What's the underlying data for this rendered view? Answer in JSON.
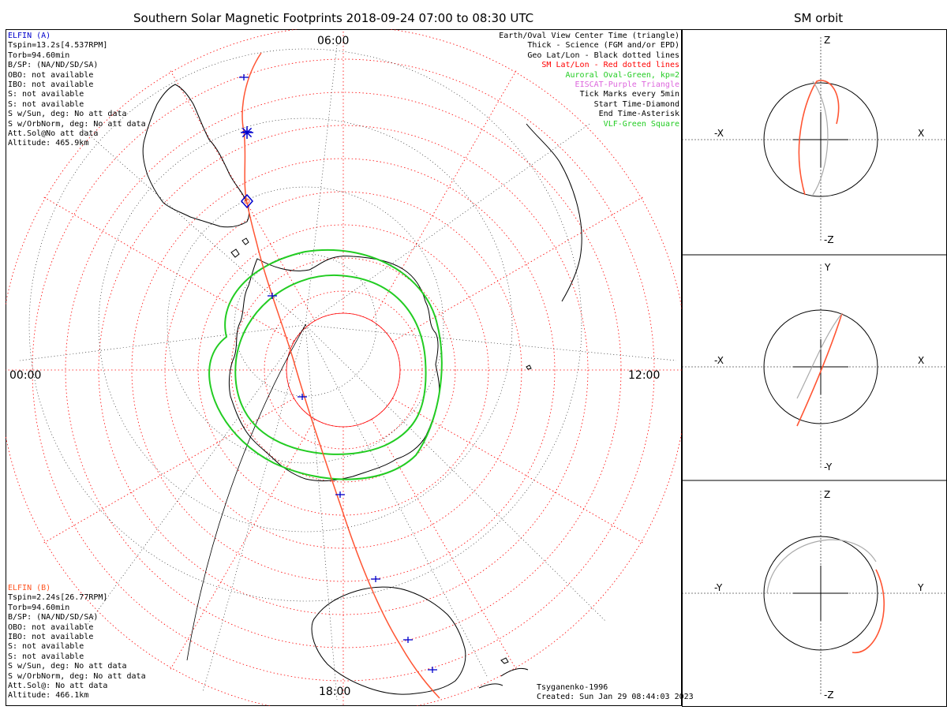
{
  "main": {
    "title": "Southern Solar Magnetic Footprints 2018-09-24 07:00 to 08:30 UTC",
    "time_labels": {
      "top": "06:00",
      "left": "00:00",
      "right": "12:00",
      "bottom": "18:00"
    },
    "legend": [
      {
        "text": "Earth/Oval View Center Time (triangle)",
        "color": "#000000"
      },
      {
        "text": "Thick - Science (FGM and/or EPD)",
        "color": "#000000"
      },
      {
        "text": "Geo Lat/Lon - Black dotted lines",
        "color": "#000000"
      },
      {
        "text": "SM Lat/Lon - Red dotted lines",
        "color": "#ff0000"
      },
      {
        "text": "Auroral Oval-Green, kp=2",
        "color": "#22cc22"
      },
      {
        "text": "EISCAT-Purple Triangle",
        "color": "#dd66dd"
      },
      {
        "text": "Tick Marks every 5min",
        "color": "#000000"
      },
      {
        "text": "Start Time-Diamond",
        "color": "#000000"
      },
      {
        "text": "End Time-Asterisk",
        "color": "#000000"
      },
      {
        "text": "VLF-Green Square",
        "color": "#22cc22"
      }
    ],
    "probe_a": {
      "name": "ELFIN (A)",
      "color": "#0000cc",
      "lines": [
        "Tspin=13.2s[4.537RPM]",
        "Torb=94.60min",
        "B/SP: (NA/ND/SD/SA)",
        "OBO: not available",
        "IBO: not available",
        "S: not available",
        "S: not available",
        "S w/Sun, deg: No att data",
        "S w/OrbNorm, deg: No att data",
        "Att.Sol@No att data",
        "Altitude: 465.9km"
      ]
    },
    "probe_b": {
      "name": "ELFIN (B)",
      "color": "#ff5522",
      "lines": [
        "Tspin=2.24s[26.77RPM]",
        "Torb=94.60min",
        "B/SP: (NA/ND/SD/SA)",
        "OBO: not available",
        "IBO: not available",
        "S: not available",
        "S: not available",
        "S w/Sun, deg: No att data",
        "S w/OrbNorm, deg: No att data",
        "Att.Sol@: No att data",
        "Altitude: 466.1km"
      ]
    },
    "model": "Tsyganenko-1996",
    "created": "Created: Sun Jan 29 08:44:03 2023",
    "colors": {
      "sm_grid": "#ff0000",
      "geo_grid": "#000000",
      "auroral_oval": "#22cc22",
      "track_a": "#0000cc",
      "track_b": "#ff5522",
      "trace": "#ff5533",
      "grey_orbit": "#aaaaaa"
    }
  },
  "orbit": {
    "title": "SM orbit",
    "panels": [
      {
        "name": "xz",
        "top": "Z",
        "bottom": "-Z",
        "left": "-X",
        "right": "X"
      },
      {
        "name": "xy",
        "top": "Y",
        "bottom": "-Y",
        "left": "-X",
        "right": "X"
      },
      {
        "name": "yz",
        "top": "Z",
        "bottom": "-Z",
        "left": "-Y",
        "right": "Y"
      }
    ]
  }
}
